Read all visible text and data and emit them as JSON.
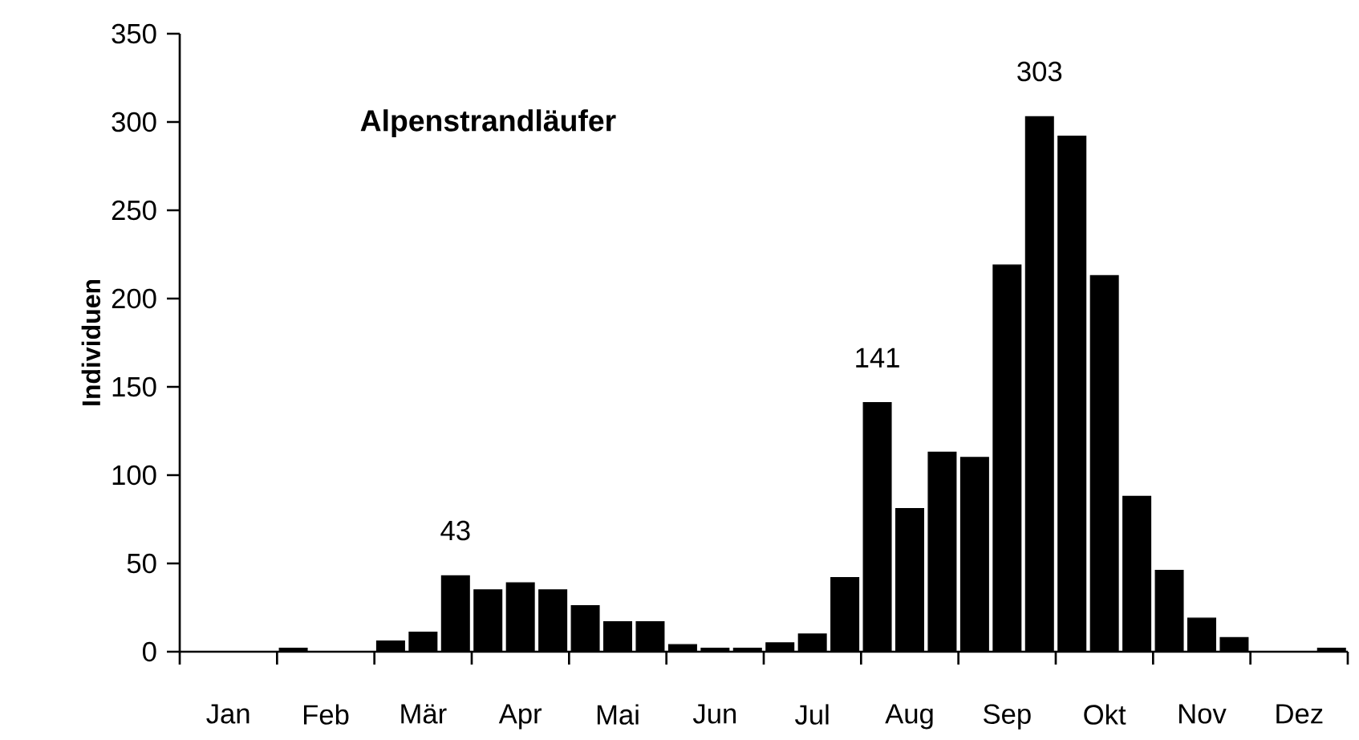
{
  "chart_data": {
    "type": "bar",
    "title": "Alpenstrandläufer",
    "ylabel": "Individuen",
    "categories": [
      null,
      "Jan",
      null,
      null,
      "Feb",
      null,
      null,
      "Mär",
      null,
      null,
      "Apr",
      null,
      null,
      "Mai",
      null,
      null,
      "Jun",
      null,
      null,
      "Jul",
      null,
      null,
      "Aug",
      null,
      null,
      "Sep",
      null,
      null,
      "Okt",
      null,
      null,
      "Nov",
      null,
      null,
      "Dez",
      null
    ],
    "values": [
      0,
      0,
      0,
      2,
      0,
      0,
      6,
      11,
      43,
      35,
      39,
      35,
      26,
      17,
      17,
      4,
      2,
      2,
      5,
      10,
      42,
      141,
      81,
      113,
      110,
      219,
      303,
      292,
      213,
      88,
      46,
      19,
      8,
      0,
      0,
      2
    ],
    "value_labels": [
      null,
      null,
      null,
      null,
      null,
      null,
      null,
      null,
      "43",
      null,
      null,
      null,
      null,
      null,
      null,
      null,
      null,
      null,
      null,
      null,
      null,
      "141",
      null,
      null,
      null,
      null,
      "303",
      null,
      null,
      null,
      null,
      null,
      null,
      null,
      null,
      null
    ],
    "color": "#000000",
    "ylim": [
      0,
      350
    ],
    "yticks": [
      0,
      50,
      100,
      150,
      200,
      250,
      300,
      350
    ]
  }
}
